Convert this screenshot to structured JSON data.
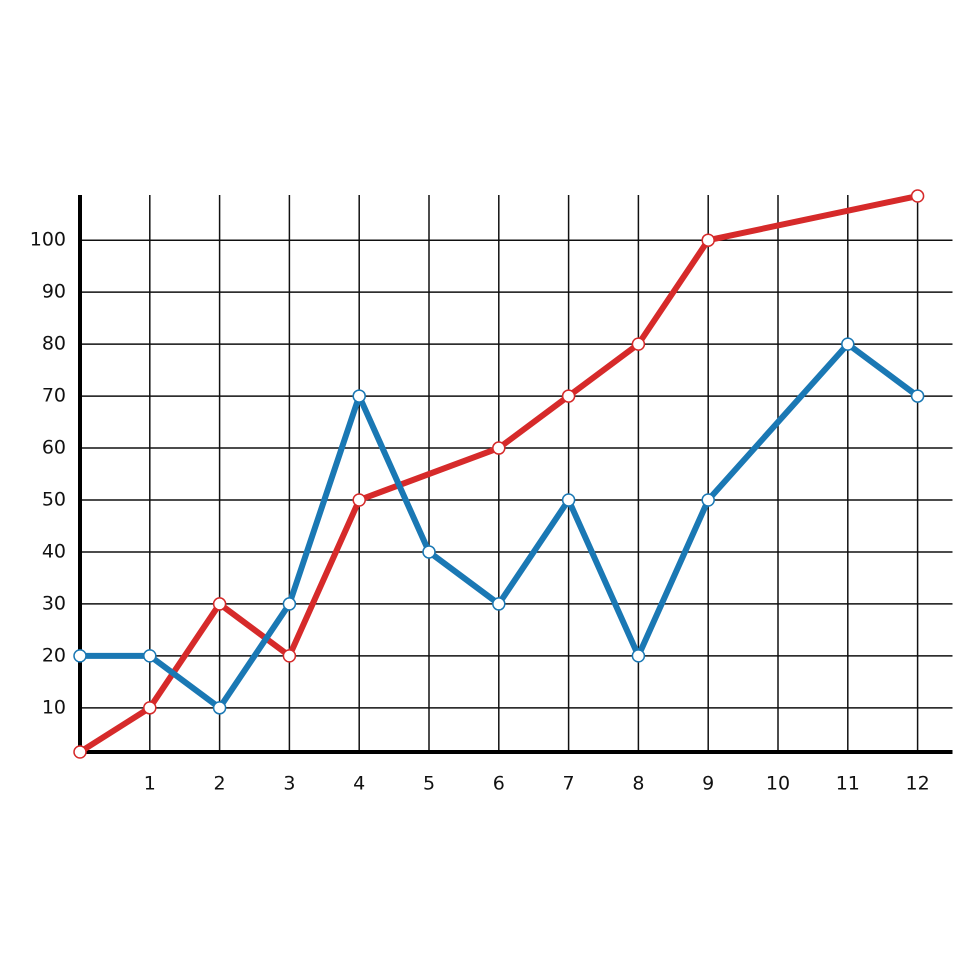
{
  "chart_data": {
    "type": "line",
    "xlim": [
      0,
      12.5
    ],
    "ylim": [
      1.5,
      108.7
    ],
    "xticks": [
      1,
      2,
      3,
      4,
      5,
      6,
      7,
      8,
      9,
      10,
      11,
      12
    ],
    "yticks": [
      10,
      20,
      30,
      40,
      50,
      60,
      70,
      80,
      90,
      100
    ],
    "grid": true,
    "series": [
      {
        "color": "#d62a2a",
        "x": [
          0,
          1,
          2,
          3,
          4,
          6,
          7,
          8,
          9,
          12
        ],
        "values": [
          1.5,
          10,
          30,
          20,
          50,
          60,
          70,
          80,
          100,
          108.5
        ]
      },
      {
        "color": "#1a78b4",
        "x": [
          0,
          1,
          2,
          3,
          4,
          5,
          6,
          7,
          8,
          9,
          11,
          12
        ],
        "values": [
          20,
          20,
          10,
          30,
          70,
          40,
          30,
          50,
          20,
          50,
          80,
          70
        ]
      }
    ]
  }
}
